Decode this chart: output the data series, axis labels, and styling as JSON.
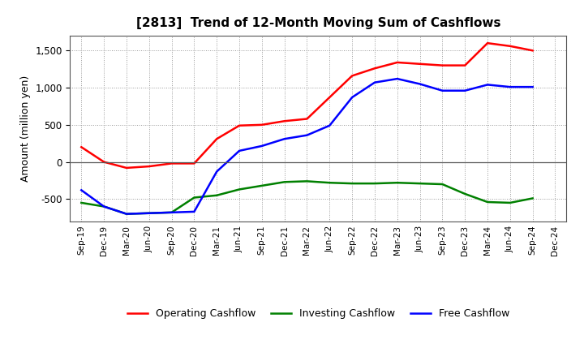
{
  "title": "[2813]  Trend of 12-Month Moving Sum of Cashflows",
  "ylabel": "Amount (million yen)",
  "x_labels": [
    "Sep-19",
    "Dec-19",
    "Mar-20",
    "Jun-20",
    "Sep-20",
    "Dec-20",
    "Mar-21",
    "Jun-21",
    "Sep-21",
    "Dec-21",
    "Mar-22",
    "Jun-22",
    "Sep-22",
    "Dec-22",
    "Mar-23",
    "Jun-23",
    "Sep-23",
    "Dec-23",
    "Mar-24",
    "Jun-24",
    "Sep-24",
    "Dec-24"
  ],
  "operating_cashflow": [
    200,
    0,
    -80,
    -60,
    -20,
    -20,
    310,
    490,
    500,
    550,
    580,
    870,
    1160,
    1260,
    1340,
    1320,
    1300,
    1300,
    1600,
    1560,
    1500,
    null
  ],
  "investing_cashflow": [
    -550,
    -600,
    -700,
    -690,
    -680,
    -480,
    -450,
    -370,
    -320,
    -270,
    -260,
    -280,
    -290,
    -290,
    -280,
    -290,
    -300,
    -430,
    -540,
    -550,
    -490,
    null
  ],
  "free_cashflow": [
    -380,
    -600,
    -700,
    -690,
    -680,
    -670,
    -130,
    150,
    215,
    310,
    360,
    490,
    870,
    1070,
    1120,
    1050,
    960,
    960,
    1040,
    1010,
    1010,
    null
  ],
  "operating_color": "#ff0000",
  "investing_color": "#008000",
  "free_color": "#0000ff",
  "ylim": [
    -800,
    1700
  ],
  "yticks": [
    -500,
    0,
    500,
    1000,
    1500
  ],
  "background_color": "#ffffff",
  "grid_color": "#aaaaaa",
  "legend_labels": [
    "Operating Cashflow",
    "Investing Cashflow",
    "Free Cashflow"
  ]
}
